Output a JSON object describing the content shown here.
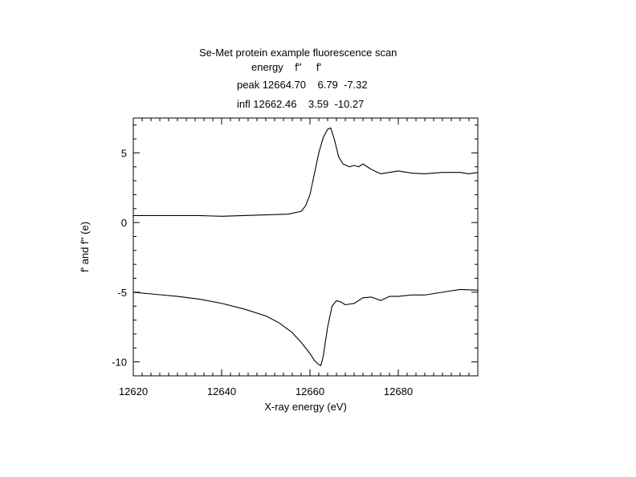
{
  "chart_data": {
    "type": "line",
    "title": "Se-Met protein example fluorescence scan",
    "table_header": "energy    f''     f'",
    "table_rows": [
      "peak 12664.70    6.79  -7.32",
      "infl 12662.46    3.59  -10.27"
    ],
    "xlabel": "X-ray energy (eV)",
    "ylabel": "f' and f'' (e)",
    "xlim": [
      12620,
      12698
    ],
    "ylim": [
      -11,
      7.5
    ],
    "xticks": [
      12620,
      12640,
      12660,
      12680
    ],
    "yticks": [
      -10,
      -5,
      0,
      5
    ],
    "grid": false,
    "series": [
      {
        "name": "",
        "x": [
          12620,
          12625,
          12630,
          12635,
          12640,
          12645,
          12650,
          12655,
          12658,
          12659,
          12660,
          12661,
          12662,
          12663,
          12664,
          12664.7,
          12665.5,
          12666.5,
          12667.5,
          12669,
          12670,
          12671,
          12672,
          12673,
          12674,
          12676,
          12678,
          12680,
          12683,
          12686,
          12690,
          12694,
          12696,
          12698
        ],
        "y": [
          0.5,
          0.5,
          0.5,
          0.5,
          0.45,
          0.5,
          0.55,
          0.6,
          0.8,
          1.2,
          2.0,
          3.5,
          5.0,
          6.1,
          6.7,
          6.79,
          6.0,
          4.7,
          4.2,
          4.0,
          4.1,
          4.0,
          4.2,
          4.0,
          3.8,
          3.5,
          3.6,
          3.7,
          3.55,
          3.5,
          3.6,
          3.6,
          3.5,
          3.6
        ]
      },
      {
        "name": "",
        "x": [
          12620,
          12625,
          12630,
          12635,
          12640,
          12645,
          12650,
          12653,
          12656,
          12658,
          12660,
          12661,
          12662,
          12662.46,
          12663,
          12664,
          12665,
          12666,
          12667,
          12668,
          12670,
          12672,
          12674,
          12676,
          12678,
          12680,
          12683,
          12686,
          12690,
          12694,
          12698
        ],
        "y": [
          -5.0,
          -5.15,
          -5.3,
          -5.5,
          -5.8,
          -6.2,
          -6.7,
          -7.2,
          -7.9,
          -8.6,
          -9.4,
          -9.9,
          -10.2,
          -10.27,
          -9.6,
          -7.5,
          -6.0,
          -5.6,
          -5.7,
          -5.9,
          -5.8,
          -5.4,
          -5.35,
          -5.6,
          -5.3,
          -5.3,
          -5.2,
          -5.2,
          -5.0,
          -4.8,
          -4.85
        ]
      }
    ]
  }
}
